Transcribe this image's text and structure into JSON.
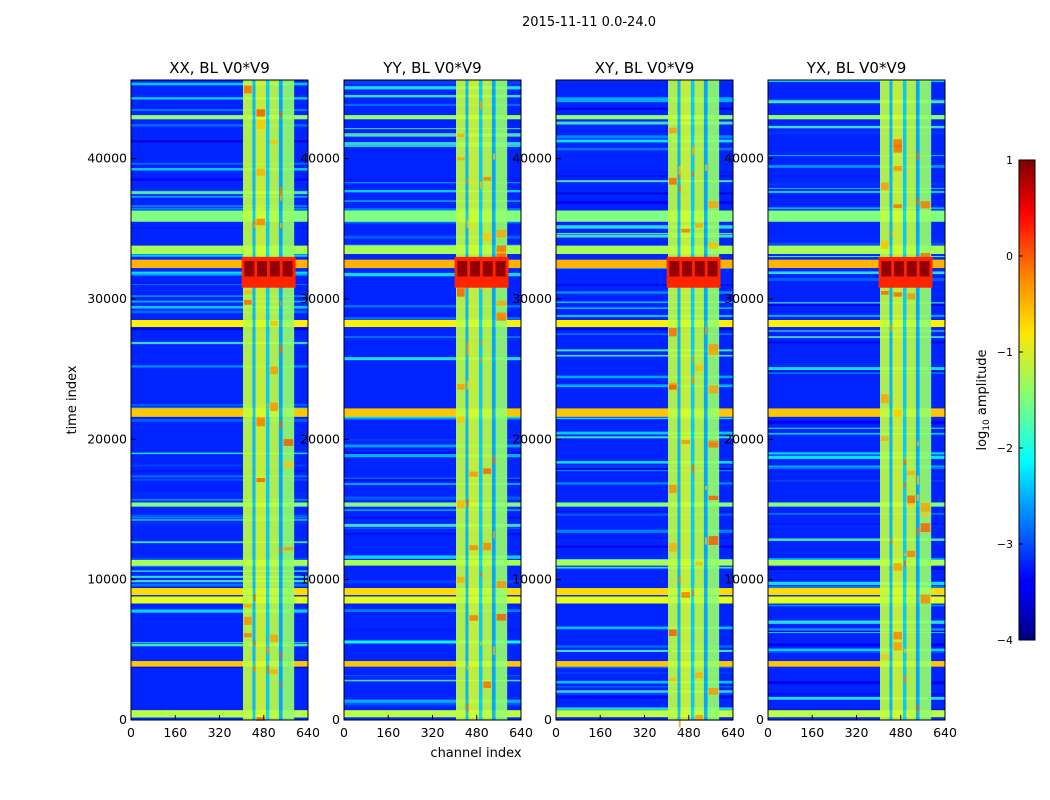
{
  "chart_data": {
    "type": "heatmap",
    "suptitle": "2015-11-11 0.0-24.0",
    "xlabel": "channel index",
    "ylabel": "time index",
    "xlim": [
      0,
      640
    ],
    "ylim": [
      0,
      45600
    ],
    "xticks": [
      0,
      160,
      320,
      480,
      640
    ],
    "yticks": [
      0,
      10000,
      20000,
      30000,
      40000
    ],
    "colormap": "jet",
    "colorbar": {
      "label": "log10 amplitude",
      "label_base": "log",
      "label_sub": "10",
      "label_rest": " amplitude",
      "range": [
        -4,
        1
      ],
      "ticks": [
        1,
        0,
        -1,
        -2,
        -3,
        -4
      ]
    },
    "panels": [
      {
        "title": "XX, BL V0*V9",
        "polarization": "XX"
      },
      {
        "title": "YY, BL V0*V9",
        "polarization": "YY"
      },
      {
        "title": "XY, BL V0*V9",
        "polarization": "XY"
      },
      {
        "title": "YX, BL V0*V9",
        "polarization": "YX"
      }
    ],
    "background_level": -3.2,
    "channel_bands": [
      {
        "start": 405,
        "end": 440,
        "level": -1.2
      },
      {
        "start": 440,
        "end": 450,
        "level": -2.4
      },
      {
        "start": 450,
        "end": 488,
        "level": -1.1
      },
      {
        "start": 488,
        "end": 500,
        "level": -2.3
      },
      {
        "start": 500,
        "end": 535,
        "level": -1.2
      },
      {
        "start": 535,
        "end": 548,
        "level": -2.5
      },
      {
        "start": 548,
        "end": 590,
        "level": -1.4
      }
    ],
    "time_flag_bands": [
      {
        "start": 200,
        "end": 700,
        "level": -1.2
      },
      {
        "start": 3800,
        "end": 4200,
        "level": -0.6
      },
      {
        "start": 8300,
        "end": 8800,
        "level": -1.0
      },
      {
        "start": 8900,
        "end": 9400,
        "level": -0.7
      },
      {
        "start": 11000,
        "end": 11400,
        "level": -1.3
      },
      {
        "start": 15200,
        "end": 15500,
        "level": -1.5
      },
      {
        "start": 21600,
        "end": 22200,
        "level": -0.6
      },
      {
        "start": 28000,
        "end": 28500,
        "level": -0.8
      },
      {
        "start": 32200,
        "end": 32800,
        "level": -0.5
      },
      {
        "start": 33200,
        "end": 33800,
        "level": -1.3
      },
      {
        "start": 35500,
        "end": 36300,
        "level": -1.5
      },
      {
        "start": 42800,
        "end": 43100,
        "level": -1.4
      }
    ],
    "rfi_burst": {
      "t_start": 30800,
      "t_end": 33000,
      "ch_start": 400,
      "ch_end": 595,
      "peak_level": 0.9
    }
  }
}
